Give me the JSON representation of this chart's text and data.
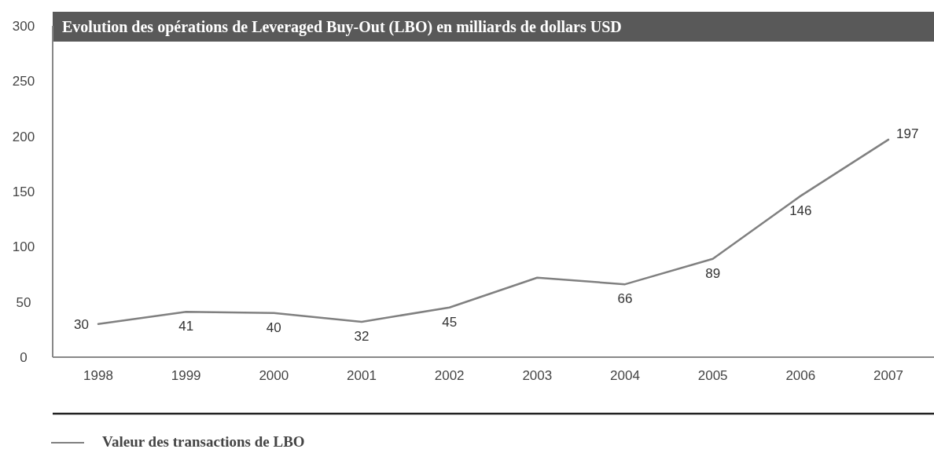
{
  "chart_data": {
    "type": "line",
    "title": "Evolution des opérations de Leveraged Buy-Out (LBO) en milliards de dollars USD",
    "categories": [
      "1998",
      "1999",
      "2000",
      "2001",
      "2002",
      "2003",
      "2004",
      "2005",
      "2006",
      "2007"
    ],
    "series": [
      {
        "name": "Valeur des transactions de LBO",
        "color": "#808080",
        "values": [
          30,
          41,
          40,
          32,
          45,
          72,
          66,
          89,
          146,
          197
        ],
        "value_labels": [
          "30",
          "41",
          "40",
          "32",
          "45",
          null,
          "66",
          "89",
          "146",
          "197"
        ]
      }
    ],
    "ylim": [
      0,
      300
    ],
    "yticks": [
      0,
      50,
      100,
      150,
      200,
      250,
      300
    ],
    "legend": "bottom",
    "grid": false,
    "marker": "none",
    "line_style": "solid"
  }
}
